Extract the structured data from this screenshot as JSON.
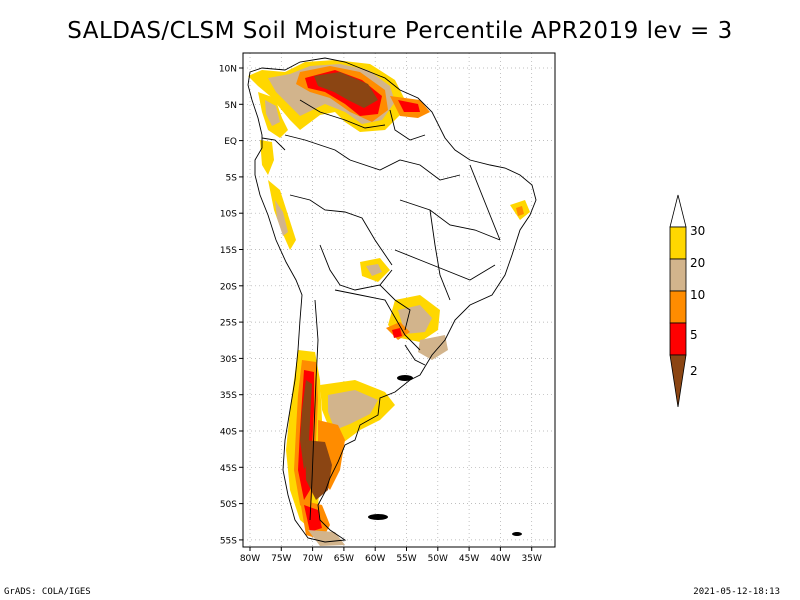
{
  "title": "SALDAS/CLSM Soil Moisture Percentile APR2019 lev = 3",
  "axes": {
    "lat_labels": [
      "10N",
      "5N",
      "EQ",
      "5S",
      "10S",
      "15S",
      "20S",
      "25S",
      "30S",
      "35S",
      "40S",
      "45S",
      "50S",
      "55S"
    ],
    "lon_labels": [
      "80W",
      "75W",
      "70W",
      "65W",
      "60W",
      "55W",
      "50W",
      "45W",
      "40W",
      "35W"
    ]
  },
  "legend": {
    "labels": [
      "30",
      "20",
      "10",
      "5",
      "2"
    ],
    "colors": {
      "above_30": "#ffffff",
      "20_30": "#ffd700",
      "10_20": "#d2b48c",
      "5_10": "#ff8c00",
      "2_5": "#ff0000",
      "below_2": "#8b4513"
    }
  },
  "footer": {
    "left": "GrADS: COLA/IGES",
    "right": "2021-05-12-18:13"
  }
}
